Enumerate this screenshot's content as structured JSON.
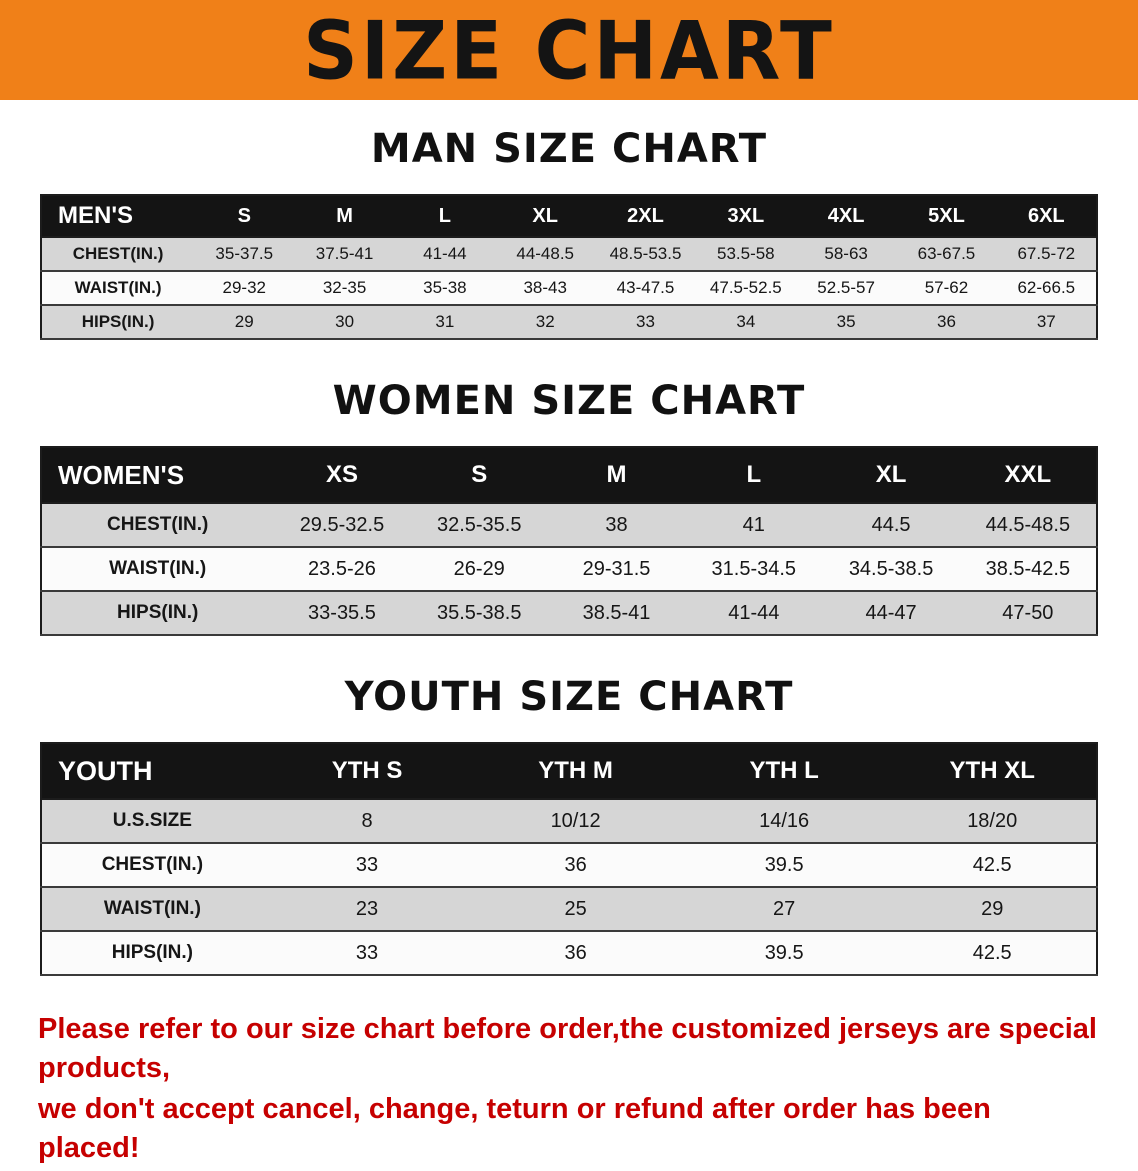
{
  "banner": {
    "title": "SIZE CHART"
  },
  "sections": [
    {
      "heading": "MAN SIZE CHART",
      "table": {
        "header": [
          "MEN'S",
          "S",
          "M",
          "L",
          "XL",
          "2XL",
          "3XL",
          "4XL",
          "5XL",
          "6XL"
        ],
        "rows": [
          [
            "CHEST(IN.)",
            "35-37.5",
            "37.5-41",
            "41-44",
            "44-48.5",
            "48.5-53.5",
            "53.5-58",
            "58-63",
            "63-67.5",
            "67.5-72"
          ],
          [
            "WAIST(IN.)",
            "29-32",
            "32-35",
            "35-38",
            "38-43",
            "43-47.5",
            "47.5-52.5",
            "52.5-57",
            "57-62",
            "62-66.5"
          ],
          [
            "HIPS(IN.)",
            "29",
            "30",
            "31",
            "32",
            "33",
            "34",
            "35",
            "36",
            "37"
          ]
        ]
      }
    },
    {
      "heading": "WOMEN SIZE CHART",
      "table": {
        "header": [
          "WOMEN'S",
          "XS",
          "S",
          "M",
          "L",
          "XL",
          "XXL"
        ],
        "rows": [
          [
            "CHEST(IN.)",
            "29.5-32.5",
            "32.5-35.5",
            "38",
            "41",
            "44.5",
            "44.5-48.5"
          ],
          [
            "WAIST(IN.)",
            "23.5-26",
            "26-29",
            "29-31.5",
            "31.5-34.5",
            "34.5-38.5",
            "38.5-42.5"
          ],
          [
            "HIPS(IN.)",
            "33-35.5",
            "35.5-38.5",
            "38.5-41",
            "41-44",
            "44-47",
            "47-50"
          ]
        ]
      }
    },
    {
      "heading": "YOUTH SIZE CHART",
      "table": {
        "header": [
          "YOUTH",
          "YTH S",
          "YTH M",
          "YTH L",
          "YTH XL"
        ],
        "rows": [
          [
            "U.S.SIZE",
            "8",
            "10/12",
            "14/16",
            "18/20"
          ],
          [
            "CHEST(IN.)",
            "33",
            "36",
            "39.5",
            "42.5"
          ],
          [
            "WAIST(IN.)",
            "23",
            "25",
            "27",
            "29"
          ],
          [
            "HIPS(IN.)",
            "33",
            "36",
            "39.5",
            "42.5"
          ]
        ]
      }
    }
  ],
  "disclaimer": {
    "line1": "Please refer to our size chart before order,the customized jerseys are special products,",
    "line2": "we don't accept cancel, change, teturn or refund after order has been placed!"
  },
  "colors": {
    "banner_bg": "#f08018",
    "table_header_bg": "#141414",
    "row_stripe": "#d6d6d6",
    "disclaimer_text": "#c60000"
  }
}
